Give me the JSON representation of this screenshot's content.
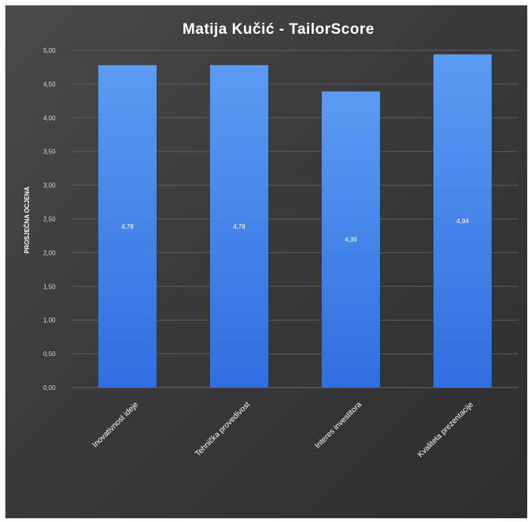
{
  "chart_data": {
    "type": "bar",
    "title": "Matija Kučić - TailorScore",
    "xlabel": "",
    "ylabel": "PROSJEČNA OCJENA",
    "categories": [
      "Inovativnost ideje",
      "Tehnička provedivost",
      "Interes investitora",
      "Kvaliteta prezentacije"
    ],
    "values": [
      4.78,
      4.78,
      4.39,
      4.94
    ],
    "value_labels": [
      "4,78",
      "4,78",
      "4,39",
      "4,94"
    ],
    "ylim": [
      0,
      5
    ],
    "yticks": [
      "0,00",
      "0,50",
      "1,00",
      "1,50",
      "2,00",
      "2,50",
      "3,00",
      "3,50",
      "4,00",
      "4,50",
      "5,00"
    ],
    "grid": true,
    "legend": "none",
    "colors": {
      "bar_top": "#5b9bf2",
      "bar_bottom": "#2f6fe0",
      "background": "#3c3c3c"
    }
  }
}
